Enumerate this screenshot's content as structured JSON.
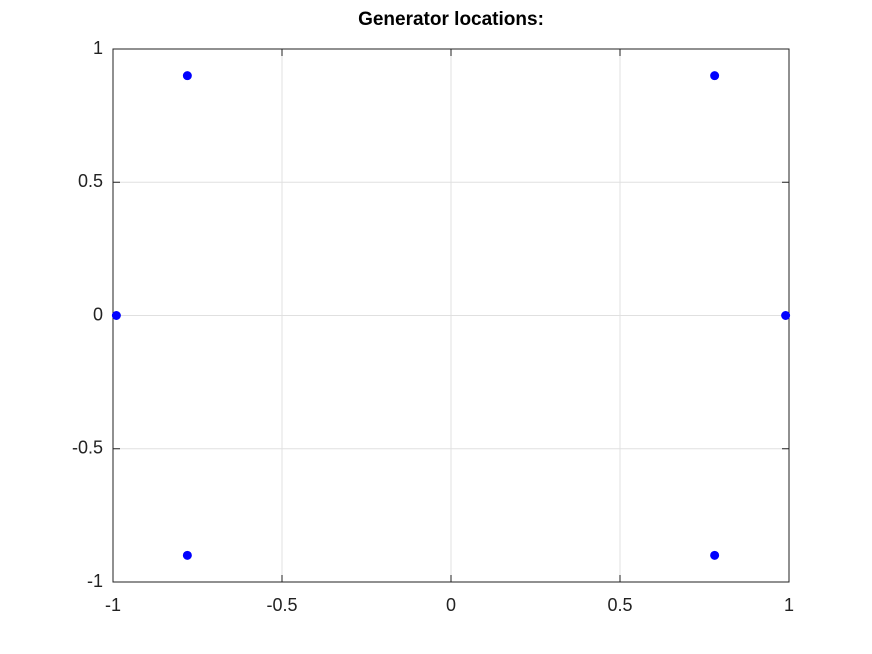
{
  "chart_data": {
    "type": "scatter",
    "title": "Generator locations:",
    "x": [
      -0.78,
      0.78,
      -0.99,
      0.99,
      -0.78,
      0.78
    ],
    "values": [
      0.9,
      0.9,
      0,
      0,
      -0.9,
      -0.9
    ],
    "color": "#0000ff",
    "xlim": [
      -1,
      1
    ],
    "xticks": [
      -1,
      -0.5,
      0,
      0.5,
      1
    ],
    "ylim": [
      -1,
      1
    ],
    "yticks": [
      -1,
      -0.5,
      0,
      0.5,
      1
    ],
    "grid": true
  }
}
